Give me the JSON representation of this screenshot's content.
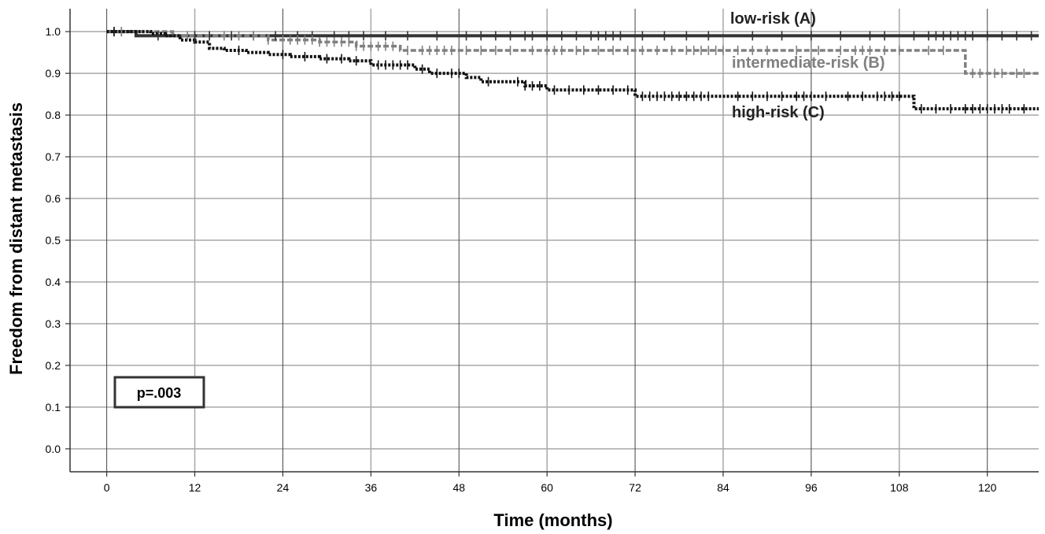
{
  "chart_data": {
    "type": "line",
    "title": "",
    "xlabel": "Time (months)",
    "ylabel": "Freedom from distant metastasis",
    "xlim": [
      -5,
      127
    ],
    "ylim": [
      -0.055,
      1.055
    ],
    "x_ticks": [
      0,
      12,
      24,
      36,
      48,
      60,
      72,
      84,
      96,
      108,
      120
    ],
    "y_ticks": [
      "0.0",
      "0.1",
      "0.2",
      "0.3",
      "0.4",
      "0.5",
      "0.6",
      "0.7",
      "0.8",
      "0.9",
      "1.0"
    ],
    "grid": true,
    "annotation": "p=.003",
    "series": [
      {
        "name": "low-risk (A)",
        "color": "#333333",
        "style": "solid",
        "steps": [
          [
            0,
            1.0
          ],
          [
            4,
            0.99
          ],
          [
            127,
            0.99
          ]
        ],
        "censored": [
          2,
          7,
          12,
          14,
          17,
          20,
          23,
          26,
          28,
          31,
          33,
          35,
          38,
          41,
          45,
          49,
          51,
          53,
          55,
          57,
          58,
          60,
          62,
          64,
          66,
          67,
          68,
          69,
          70,
          73,
          76,
          79,
          82,
          88,
          92,
          96,
          100,
          104,
          106,
          110,
          112,
          113,
          114,
          115,
          116,
          117,
          118,
          120,
          122,
          124,
          126
        ]
      },
      {
        "name": "intermediate-risk (B)",
        "color": "#808080",
        "style": "dashed",
        "steps": [
          [
            0,
            1.0
          ],
          [
            9,
            0.99
          ],
          [
            22,
            0.98
          ],
          [
            29,
            0.975
          ],
          [
            34,
            0.965
          ],
          [
            40,
            0.955
          ],
          [
            117,
            0.9
          ],
          [
            127,
            0.9
          ]
        ],
        "censored": [
          1,
          2,
          11,
          16,
          18,
          20,
          22,
          24,
          25,
          26,
          27,
          28,
          29,
          30,
          31,
          32,
          33,
          34,
          35,
          36,
          37,
          38,
          39,
          41,
          43,
          44,
          45,
          46,
          47,
          48,
          49,
          51,
          53,
          55,
          58,
          60,
          61,
          62,
          64,
          65,
          67,
          69,
          71,
          73,
          75,
          77,
          79,
          80,
          81,
          82,
          83,
          84,
          86,
          88,
          90,
          94,
          97,
          100,
          102,
          103,
          104,
          106,
          108,
          112,
          114,
          118,
          119,
          121,
          122,
          124,
          125
        ]
      },
      {
        "name": "high-risk (C)",
        "color": "#111111",
        "style": "dotted",
        "steps": [
          [
            0,
            1.0
          ],
          [
            6,
            0.995
          ],
          [
            8,
            0.99
          ],
          [
            10,
            0.98
          ],
          [
            12,
            0.975
          ],
          [
            14,
            0.96
          ],
          [
            16,
            0.955
          ],
          [
            19,
            0.95
          ],
          [
            22,
            0.945
          ],
          [
            25,
            0.94
          ],
          [
            29,
            0.935
          ],
          [
            33,
            0.93
          ],
          [
            36,
            0.92
          ],
          [
            42,
            0.91
          ],
          [
            44,
            0.9
          ],
          [
            49,
            0.89
          ],
          [
            51,
            0.88
          ],
          [
            57,
            0.87
          ],
          [
            60,
            0.86
          ],
          [
            72,
            0.845
          ],
          [
            110,
            0.815
          ],
          [
            127,
            0.815
          ]
        ],
        "censored": [
          1,
          18,
          24,
          27,
          30,
          32,
          34,
          37,
          38,
          39,
          40,
          41,
          43,
          45,
          47,
          48,
          52,
          56,
          57,
          58,
          59,
          61,
          63,
          65,
          67,
          69,
          71,
          73,
          74,
          75,
          76,
          77,
          78,
          79,
          80,
          81,
          82,
          86,
          88,
          90,
          92,
          94,
          95,
          96,
          98,
          101,
          103,
          105,
          106,
          107,
          108,
          111,
          113,
          115,
          117,
          118,
          119,
          120,
          121,
          122,
          123,
          125
        ]
      }
    ]
  }
}
